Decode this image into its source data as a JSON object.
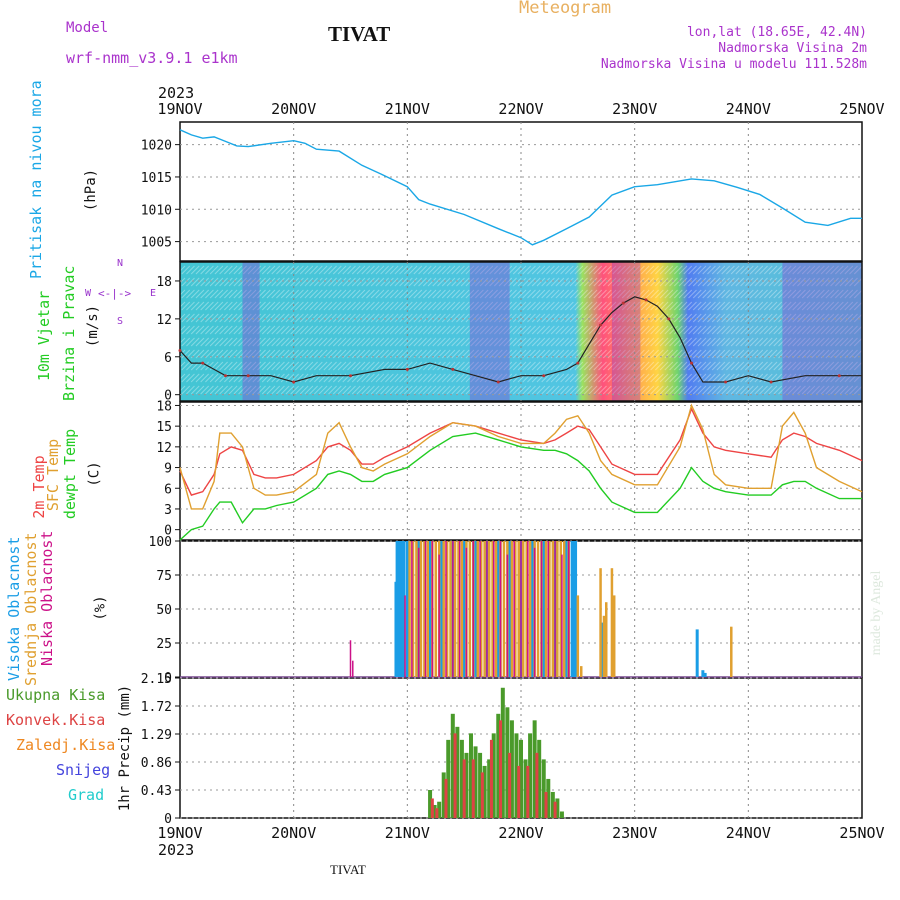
{
  "header": {
    "title": "Meteogram",
    "model_label": "Model",
    "model_name": "wrf-nmm_v3.9.1 e1km",
    "station": "TIVAT",
    "lonlat": "lon,lat (18.65E, 42.4N)",
    "elevation": "Nadmorska Visina 2m",
    "model_elevation": "Nadmorska Visina u modelu 111.528m",
    "footer_station": "TIVAT",
    "credit": "made by Angel"
  },
  "colors": {
    "pressure": "#1aa7e6",
    "t2m": "#ee4444",
    "tsfc": "#e0a030",
    "dewpt": "#22cc22",
    "high_cloud": "#1a9de6",
    "mid_cloud": "#e0a030",
    "low_cloud": "#cc1188",
    "precip_total": "#4a9a2a",
    "precip_conv": "#dd4444",
    "freezing": "#ee8822",
    "snow": "#4444dd",
    "hail": "#22cccc",
    "wind_labels": "#9933cc",
    "title": "#e8b060",
    "meta": "#aa33cc"
  },
  "time_axis": {
    "year": "2023",
    "labels": [
      "19NOV",
      "20NOV",
      "21NOV",
      "22NOV",
      "23NOV",
      "24NOV",
      "25NOV"
    ]
  },
  "panel_labels": {
    "pressure": {
      "lines": [
        "Pritisak na nivou mora"
      ],
      "unit": "(hPa)"
    },
    "wind": {
      "lines": [
        "10m Vjetar",
        "Brzina i Pravac"
      ],
      "unit": "(m/s)",
      "compass": "N",
      "compass_s": "S",
      "compass_w": "W",
      "compass_e": "E"
    },
    "temp": {
      "lines": [
        "2m Temp",
        "SFC Temp",
        "dewpt Temp"
      ],
      "unit": "(C)"
    },
    "cloud": {
      "lines": [
        "Visoka Oblacnost",
        "Srednja Oblacnost",
        "Niska Oblacnost"
      ],
      "unit": "(%)"
    },
    "precip": {
      "names": [
        "Ukupna Kisa",
        "Konvek.Kisa",
        "Zaledj.Kisa",
        "Snijeg",
        "Grad"
      ],
      "unit": "1hr Precip (mm)"
    }
  },
  "chart_data": [
    {
      "type": "line",
      "ylabel": "(hPa)",
      "yticks": [
        "1005",
        "1010",
        "1015",
        "1020"
      ],
      "ylim": [
        1002,
        1023.5
      ],
      "x_unit": "days since 19NOV 00Z",
      "series": [
        {
          "name": "Pritisak na nivou mora",
          "x": [
            0,
            0.1,
            0.2,
            0.3,
            0.4,
            0.5,
            0.6,
            0.8,
            1.0,
            1.1,
            1.2,
            1.4,
            1.6,
            1.8,
            2.0,
            2.1,
            2.2,
            2.5,
            2.8,
            3.0,
            3.1,
            3.2,
            3.4,
            3.6,
            3.7,
            3.8,
            4.0,
            4.2,
            4.5,
            4.7,
            4.9,
            5.1,
            5.3,
            5.5,
            5.7,
            5.9,
            6.0
          ],
          "values": [
            1022.3,
            1021.5,
            1021.0,
            1021.2,
            1020.5,
            1019.8,
            1019.7,
            1020.2,
            1020.6,
            1020.2,
            1019.3,
            1019.0,
            1016.8,
            1015.2,
            1013.5,
            1011.5,
            1010.8,
            1009.2,
            1007.0,
            1005.6,
            1004.5,
            1005.2,
            1007.0,
            1008.8,
            1010.5,
            1012.2,
            1013.5,
            1013.8,
            1014.7,
            1014.4,
            1013.4,
            1012.3,
            1010.2,
            1008.0,
            1007.5,
            1008.6,
            1008.6
          ]
        }
      ]
    },
    {
      "type": "line",
      "ylabel": "(m/s)",
      "yticks": [
        "0",
        "6",
        "12",
        "18"
      ],
      "ylim": [
        -1,
        21
      ],
      "series": [
        {
          "name": "wind speed",
          "x": [
            0,
            0.1,
            0.2,
            0.3,
            0.4,
            0.5,
            0.6,
            0.8,
            1.0,
            1.2,
            1.5,
            1.8,
            2.0,
            2.2,
            2.4,
            2.6,
            2.8,
            3.0,
            3.2,
            3.4,
            3.5,
            3.6,
            3.7,
            3.8,
            3.9,
            4.0,
            4.1,
            4.2,
            4.3,
            4.4,
            4.5,
            4.6,
            4.8,
            5.0,
            5.2,
            5.5,
            5.8,
            6.0
          ],
          "values": [
            7,
            5,
            5,
            4,
            3,
            3,
            3,
            3,
            2,
            3,
            3,
            4,
            4,
            5,
            4,
            3,
            2,
            3,
            3,
            4,
            5,
            8,
            11,
            13,
            14.5,
            15.5,
            15,
            14,
            12,
            9,
            5,
            2,
            2,
            3,
            2,
            3,
            3,
            3
          ]
        }
      ],
      "direction_note": "wind barbs at hourly intervals, colored by speed"
    },
    {
      "type": "line",
      "ylabel": "(C)",
      "yticks": [
        "0",
        "3",
        "6",
        "9",
        "12",
        "15",
        "18"
      ],
      "ylim": [
        -1.5,
        18.5
      ],
      "x": [
        0,
        0.1,
        0.2,
        0.3,
        0.35,
        0.45,
        0.55,
        0.65,
        0.75,
        0.85,
        1.0,
        1.2,
        1.3,
        1.4,
        1.5,
        1.6,
        1.7,
        1.8,
        2.0,
        2.2,
        2.4,
        2.6,
        2.8,
        3.0,
        3.2,
        3.3,
        3.4,
        3.5,
        3.6,
        3.7,
        3.8,
        4.0,
        4.2,
        4.4,
        4.5,
        4.6,
        4.7,
        4.8,
        5.0,
        5.2,
        5.3,
        5.4,
        5.5,
        5.6,
        5.8,
        6.0
      ],
      "series": [
        {
          "name": "2m Temp",
          "values": [
            8.5,
            5,
            5.5,
            8,
            11,
            12,
            11.5,
            8,
            7.5,
            7.5,
            8,
            10,
            12,
            12.5,
            11.5,
            9.5,
            9.5,
            10.5,
            12,
            14,
            15.5,
            15,
            14,
            13,
            12.5,
            13,
            14,
            15,
            14.5,
            12,
            9.5,
            8,
            8,
            13,
            17.5,
            14,
            12,
            11.5,
            11,
            10.5,
            13,
            14,
            13.5,
            12.5,
            11.5,
            10
          ]
        },
        {
          "name": "SFC Temp",
          "values": [
            9,
            3,
            3,
            7,
            14,
            14,
            12,
            6,
            5,
            5,
            5.5,
            8,
            14,
            15.5,
            12,
            9,
            8.5,
            9.5,
            11,
            13.5,
            15.5,
            15,
            13.5,
            12.5,
            12.5,
            14,
            16,
            16.5,
            14,
            10,
            8,
            6.5,
            6.5,
            12,
            18,
            14.5,
            8,
            6.5,
            6,
            6,
            15,
            17,
            14,
            9,
            7,
            5.5
          ]
        },
        {
          "name": "dewpt Temp",
          "values": [
            -1.5,
            0,
            0.5,
            3,
            4,
            4,
            1,
            3,
            3,
            3.5,
            4,
            6,
            8,
            8.5,
            8,
            7,
            7,
            8,
            9,
            11.5,
            13.5,
            14,
            13,
            12,
            11.5,
            11.5,
            11,
            10,
            8.5,
            6,
            4,
            2.5,
            2.5,
            6,
            9,
            7,
            6,
            5.5,
            5,
            5,
            6.5,
            7,
            7,
            6,
            4.5,
            4.5
          ]
        }
      ]
    },
    {
      "type": "bar",
      "ylabel": "(%)",
      "yticks": [
        "0",
        "25",
        "50",
        "75",
        "100"
      ],
      "ylim": [
        0,
        100
      ],
      "series": [
        {
          "name": "Visoka Oblacnost",
          "x": [
            1.9,
            1.91,
            1.93,
            1.95,
            1.97,
            2.0,
            2.1,
            2.2,
            2.3,
            2.4,
            2.5,
            2.6,
            2.7,
            2.8,
            2.9,
            3.0,
            3.1,
            3.2,
            3.3,
            3.4,
            3.45,
            3.47,
            3.48,
            3.72,
            4.55,
            4.6,
            4.62
          ],
          "values": [
            70,
            100,
            100,
            100,
            100,
            100,
            100,
            100,
            100,
            100,
            100,
            100,
            100,
            100,
            100,
            100,
            100,
            100,
            100,
            100,
            100,
            100,
            100,
            40,
            35,
            5,
            3
          ]
        },
        {
          "name": "Srednja Oblacnost",
          "x": [
            2.02,
            2.05,
            2.08,
            2.12,
            2.15,
            2.18,
            2.22,
            2.25,
            2.28,
            2.32,
            2.35,
            2.38,
            2.42,
            2.45,
            2.48,
            2.52,
            2.55,
            2.58,
            2.62,
            2.65,
            2.68,
            2.72,
            2.75,
            2.78,
            2.82,
            2.85,
            2.88,
            2.92,
            2.95,
            2.98,
            3.02,
            3.05,
            3.08,
            3.12,
            3.15,
            3.18,
            3.22,
            3.25,
            3.28,
            3.32,
            3.35,
            3.38,
            3.42,
            3.5,
            3.53,
            3.7,
            3.73,
            3.75,
            3.8,
            3.82,
            4.85
          ],
          "values": [
            100,
            100,
            100,
            100,
            100,
            100,
            100,
            100,
            100,
            100,
            100,
            100,
            100,
            100,
            100,
            100,
            100,
            100,
            100,
            100,
            100,
            100,
            100,
            100,
            100,
            100,
            100,
            100,
            100,
            100,
            100,
            100,
            100,
            100,
            100,
            100,
            100,
            100,
            100,
            100,
            100,
            100,
            100,
            60,
            8,
            80,
            45,
            55,
            80,
            60,
            37
          ]
        },
        {
          "name": "Niska Oblacnost",
          "x": [
            1.5,
            1.52,
            1.98,
            2.04,
            2.1,
            2.16,
            2.22,
            2.28,
            2.34,
            2.4,
            2.46,
            2.52,
            2.58,
            2.64,
            2.7,
            2.76,
            2.82,
            2.88,
            2.94,
            3.0,
            3.06,
            3.12,
            3.18,
            3.24,
            3.3,
            3.36,
            3.42
          ],
          "values": [
            27,
            12,
            60,
            100,
            95,
            100,
            100,
            90,
            100,
            100,
            100,
            95,
            100,
            100,
            100,
            100,
            100,
            90,
            100,
            100,
            100,
            95,
            100,
            100,
            100,
            90,
            100
          ]
        }
      ]
    },
    {
      "type": "bar",
      "ylabel": "1hr Precip (mm)",
      "yticks": [
        "0",
        "0.43",
        "0.86",
        "1.29",
        "1.72",
        "2.15"
      ],
      "ylim": [
        0,
        2.15
      ],
      "series": [
        {
          "name": "Ukupna Kisa",
          "x": [
            2.2,
            2.24,
            2.28,
            2.32,
            2.36,
            2.4,
            2.44,
            2.48,
            2.52,
            2.56,
            2.6,
            2.64,
            2.68,
            2.72,
            2.76,
            2.8,
            2.84,
            2.88,
            2.92,
            2.96,
            3.0,
            3.04,
            3.08,
            3.12,
            3.16,
            3.2,
            3.24,
            3.28,
            3.32,
            3.36
          ],
          "values": [
            0.43,
            0.2,
            0.25,
            0.7,
            1.2,
            1.6,
            1.4,
            1.2,
            1.0,
            1.3,
            1.1,
            1.0,
            0.8,
            0.9,
            1.3,
            1.6,
            2.0,
            1.7,
            1.5,
            1.3,
            1.2,
            0.9,
            1.3,
            1.5,
            1.2,
            0.9,
            0.6,
            0.4,
            0.3,
            0.1
          ]
        },
        {
          "name": "Konvek.Kisa",
          "x": [
            2.22,
            2.26,
            2.34,
            2.42,
            2.5,
            2.58,
            2.66,
            2.74,
            2.82,
            2.9,
            2.98,
            3.06,
            3.14,
            3.22,
            3.3
          ],
          "values": [
            0.3,
            0.15,
            0.6,
            1.3,
            0.9,
            0.9,
            0.7,
            1.2,
            1.5,
            1.0,
            0.8,
            0.8,
            1.0,
            0.4,
            0.25
          ]
        },
        {
          "name": "Zaledj.Kisa",
          "x": [],
          "values": []
        },
        {
          "name": "Snijeg",
          "x": [],
          "values": []
        },
        {
          "name": "Grad",
          "x": [],
          "values": []
        }
      ]
    }
  ]
}
